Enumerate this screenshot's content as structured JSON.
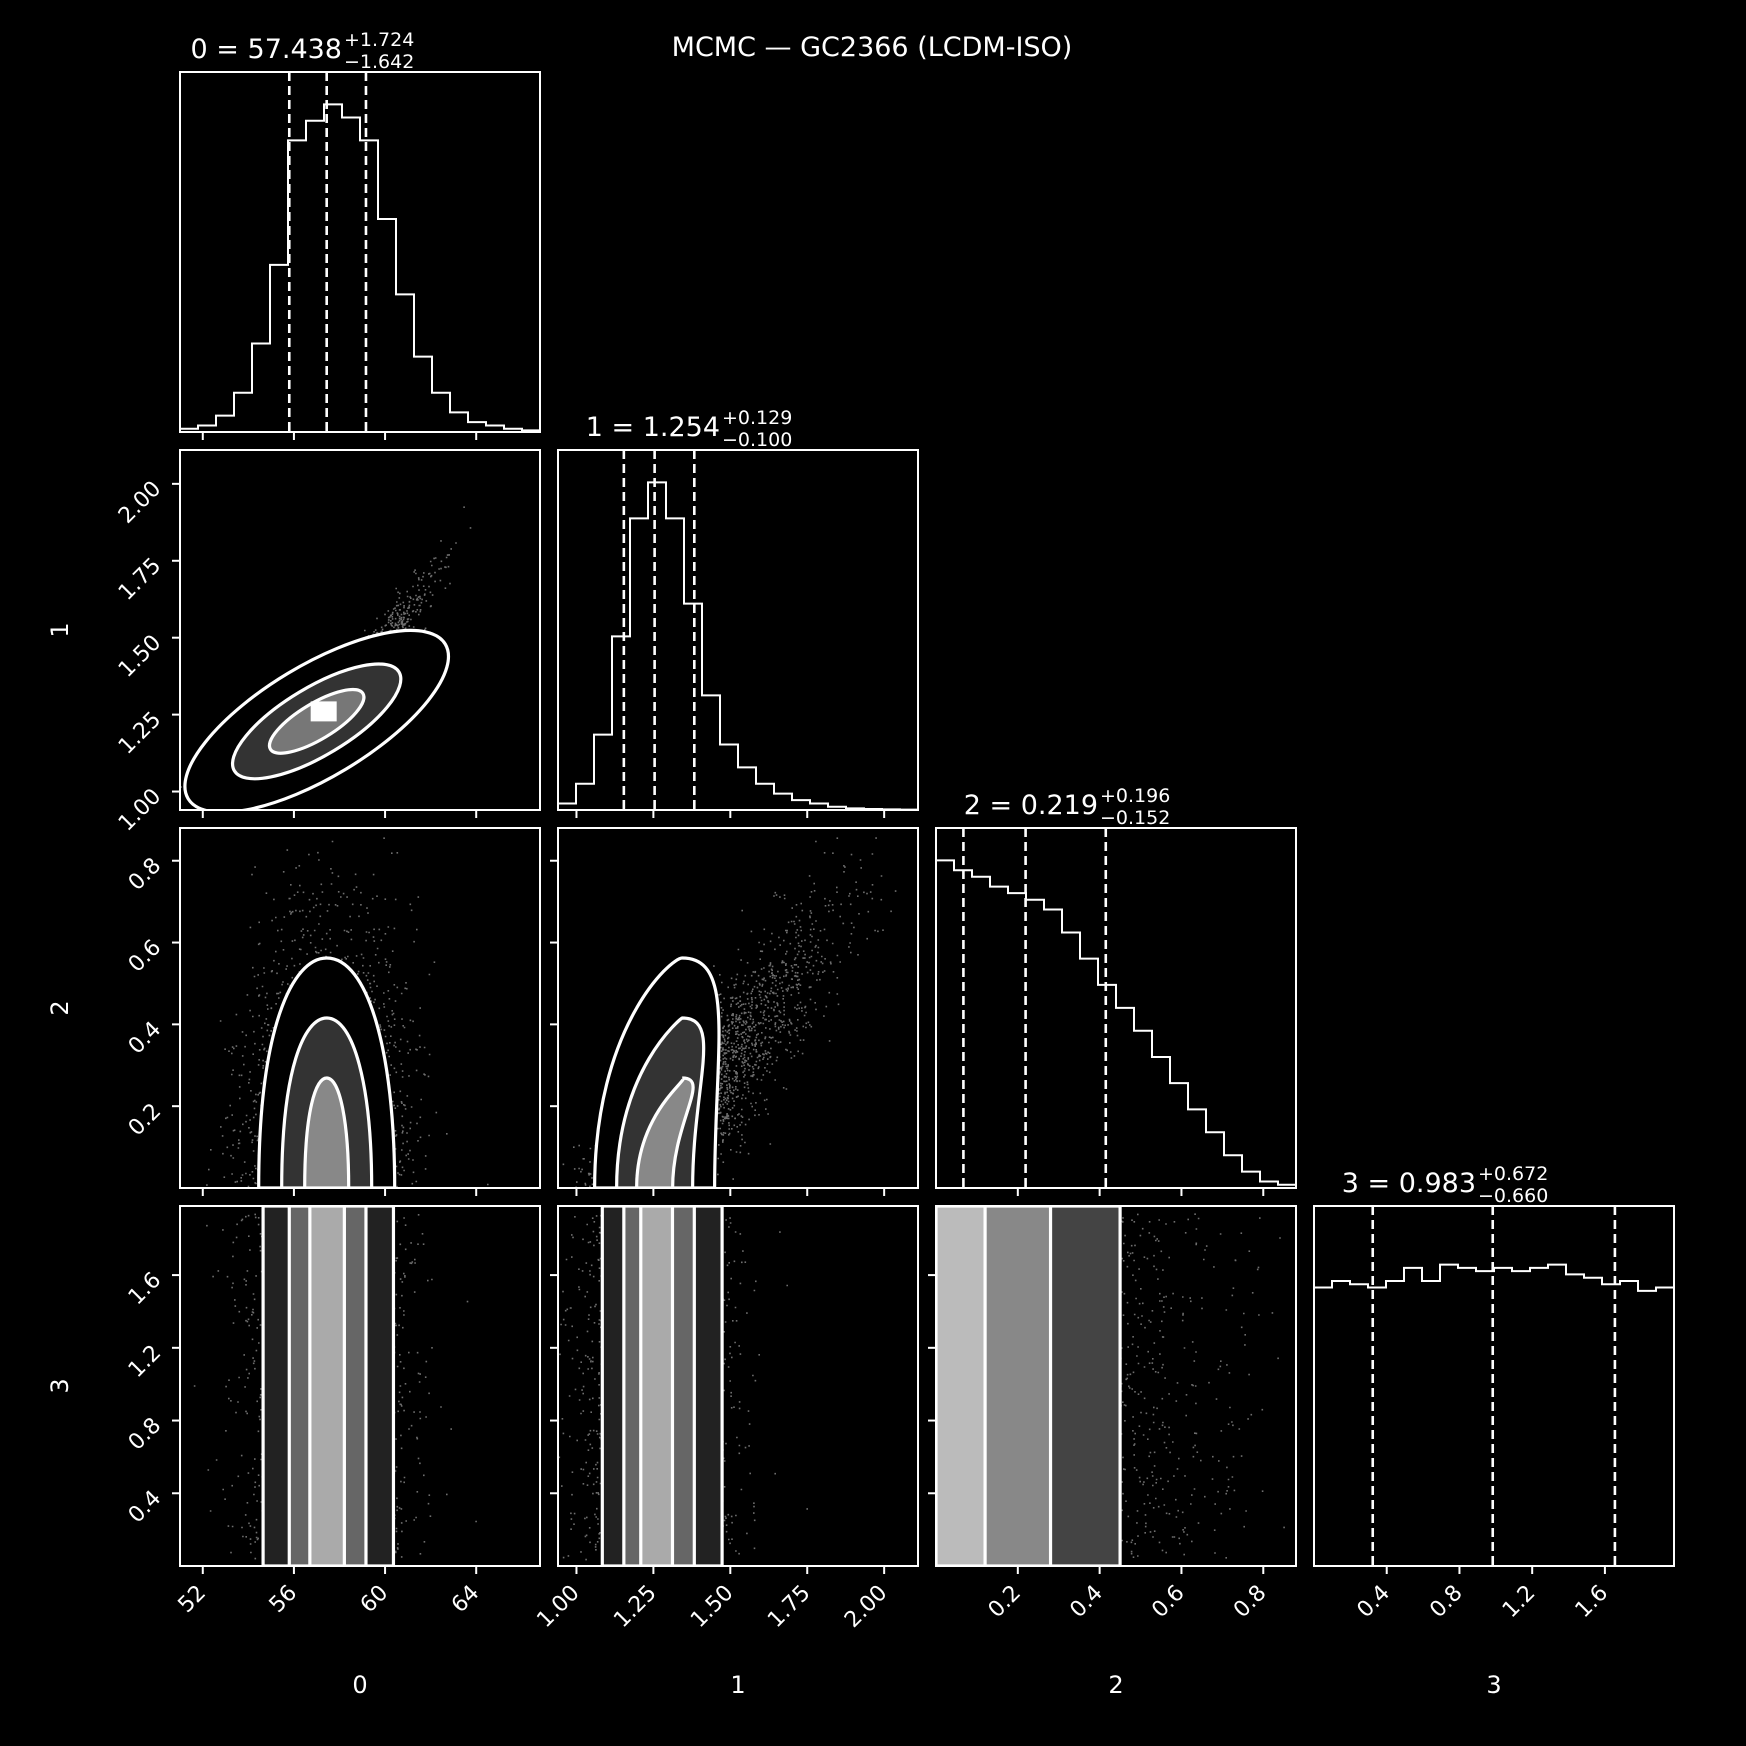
{
  "title": "MCMC — GC2366 (LCDM-ISO)",
  "colors": {
    "background": "#000000",
    "foreground": "#ffffff"
  },
  "chart_data": {
    "type": "corner",
    "title": "MCMC — GC2366 (LCDM-ISO)",
    "grid": false,
    "parameters": [
      {
        "name": "0",
        "median": 57.438,
        "plus": 1.724,
        "minus": 1.642,
        "median_label": "57.438",
        "plus_label": "+1.724",
        "minus_label": "−1.642",
        "range": [
          51.0,
          66.8
        ],
        "ticks": [
          52,
          56,
          60,
          64
        ],
        "tick_labels": [
          "52",
          "56",
          "60",
          "64"
        ]
      },
      {
        "name": "1",
        "median": 1.254,
        "plus": 0.129,
        "minus": 0.1,
        "median_label": "1.254",
        "plus_label": "+0.129",
        "minus_label": "−0.100",
        "range": [
          0.94,
          2.11
        ],
        "ticks": [
          1.0,
          1.25,
          1.5,
          1.75,
          2.0
        ],
        "tick_labels": [
          "1.00",
          "1.25",
          "1.50",
          "1.75",
          "2.00"
        ]
      },
      {
        "name": "2",
        "median": 0.219,
        "plus": 0.196,
        "minus": 0.152,
        "median_label": "0.219",
        "plus_label": "+0.196",
        "minus_label": "−0.152",
        "range": [
          0.0,
          0.88
        ],
        "ticks": [
          0.2,
          0.4,
          0.6,
          0.8
        ],
        "tick_labels": [
          "0.2",
          "0.4",
          "0.6",
          "0.8"
        ]
      },
      {
        "name": "3",
        "median": 0.983,
        "plus": 0.672,
        "minus": 0.66,
        "median_label": "0.983",
        "plus_label": "+0.672",
        "minus_label": "−0.660",
        "range": [
          0.0,
          1.98
        ],
        "ticks": [
          0.4,
          0.8,
          1.2,
          1.6
        ],
        "tick_labels": [
          "0.4",
          "0.8",
          "1.2",
          "1.6"
        ]
      }
    ],
    "histograms": [
      {
        "param": "0",
        "bin_start": 51.0,
        "bin_width": 0.79,
        "counts": [
          0.01,
          0.02,
          0.05,
          0.12,
          0.27,
          0.51,
          0.89,
          0.95,
          1.0,
          0.96,
          0.89,
          0.65,
          0.42,
          0.23,
          0.12,
          0.06,
          0.03,
          0.02,
          0.01,
          0.005
        ]
      },
      {
        "param": "1",
        "bin_start": 0.94,
        "bin_width": 0.0585,
        "counts": [
          0.02,
          0.08,
          0.23,
          0.53,
          0.89,
          1.0,
          0.89,
          0.63,
          0.35,
          0.2,
          0.13,
          0.08,
          0.05,
          0.03,
          0.02,
          0.01,
          0.005,
          0.003,
          0.002,
          0.001
        ]
      },
      {
        "param": "2",
        "bin_start": 0.0,
        "bin_width": 0.044,
        "counts": [
          1.0,
          0.97,
          0.95,
          0.92,
          0.9,
          0.88,
          0.85,
          0.78,
          0.7,
          0.62,
          0.55,
          0.48,
          0.4,
          0.32,
          0.24,
          0.17,
          0.1,
          0.05,
          0.02,
          0.01
        ]
      },
      {
        "param": "3",
        "bin_start": 0.0,
        "bin_width": 0.099,
        "counts": [
          0.85,
          0.87,
          0.86,
          0.85,
          0.87,
          0.91,
          0.87,
          0.92,
          0.91,
          0.9,
          0.91,
          0.9,
          0.91,
          0.92,
          0.89,
          0.88,
          0.86,
          0.87,
          0.84,
          0.85
        ]
      }
    ],
    "contours": [
      {
        "x": "0",
        "y": "1",
        "correlation": 0.92,
        "levels": [
          0.5,
          0.9,
          0.98
        ]
      },
      {
        "x": "0",
        "y": "2",
        "correlation": 0.05,
        "levels": [
          0.5,
          0.9,
          0.98
        ]
      },
      {
        "x": "1",
        "y": "2",
        "correlation": 0.55,
        "levels": [
          0.5,
          0.9,
          0.98
        ]
      },
      {
        "x": "0",
        "y": "3",
        "correlation": 0.0,
        "levels": [
          0.5,
          0.9,
          0.98
        ]
      },
      {
        "x": "1",
        "y": "3",
        "correlation": 0.0,
        "levels": [
          0.5,
          0.9,
          0.98
        ]
      },
      {
        "x": "2",
        "y": "3",
        "correlation": 0.0,
        "levels": [
          0.5,
          0.9,
          0.98
        ]
      }
    ]
  }
}
